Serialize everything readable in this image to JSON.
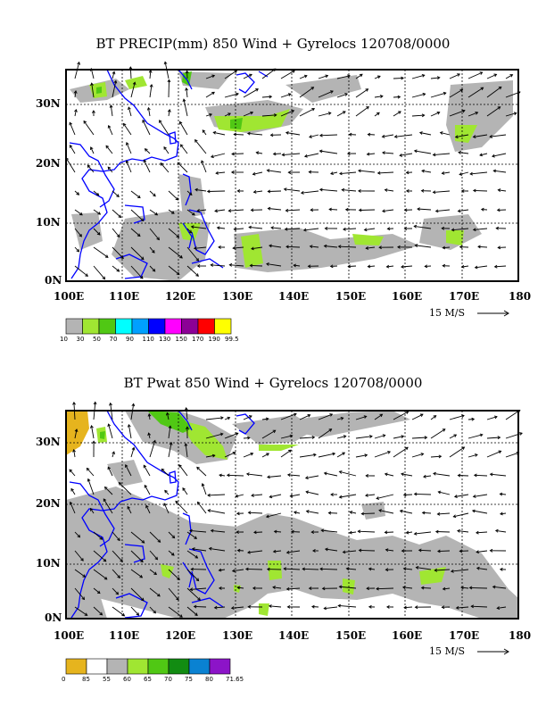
{
  "panels": [
    {
      "id": "precip",
      "title": "BT PRECIP(mm) 850 Wind + Gyrelocs 120708/0000",
      "lon_labels": [
        "100E",
        "110E",
        "120E",
        "130E",
        "140E",
        "150E",
        "160E",
        "170E",
        "180"
      ],
      "lat_labels": [
        "30N",
        "20N",
        "10N",
        "0N"
      ],
      "reference_vector": "15 M/S",
      "scale_labels": [
        "10",
        "30",
        "50",
        "70",
        "90",
        "110",
        "130",
        "150",
        "170",
        "190",
        "99.5"
      ],
      "scale_colors": [
        "#b4b4b4",
        "#a0e632",
        "#50c814",
        "#00ffff",
        "#00a0ff",
        "#0000ff",
        "#ff00ff",
        "#8c0096",
        "#ff0000",
        "#ffff00"
      ]
    },
    {
      "id": "pwat",
      "title": "BT Pwat 850 Wind + Gyrelocs 120708/0000",
      "lon_labels": [
        "100E",
        "110E",
        "120E",
        "130E",
        "140E",
        "150E",
        "160E",
        "170E",
        "180"
      ],
      "lat_labels": [
        "30N",
        "20N",
        "10N",
        "0N"
      ],
      "reference_vector": "15 M/S",
      "scale_labels": [
        "0",
        "85",
        "55",
        "60",
        "65",
        "70",
        "75",
        "80",
        "71.65"
      ],
      "scale_colors": [
        "#e6b41e",
        "#ffffff",
        "#b4b4b4",
        "#a0e632",
        "#50c814",
        "#128c12",
        "#0a82d2",
        "#8c14c8"
      ]
    }
  ],
  "colors": {
    "coast": "#0000ff",
    "gray": "#b4b4b4",
    "green": "#a0e632",
    "darkgreen": "#50c814"
  }
}
